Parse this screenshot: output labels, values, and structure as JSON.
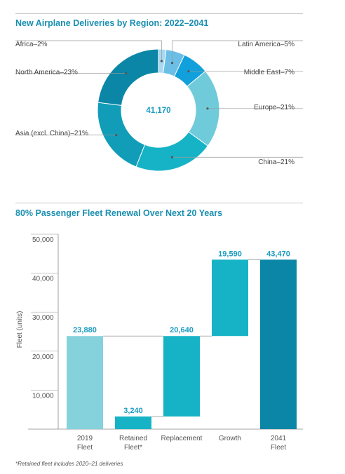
{
  "chart_data": [
    {
      "type": "pie",
      "title": "New Airplane Deliveries by Region: 2022–2041",
      "center_value": "41,170",
      "slices": [
        {
          "label": "Africa–2%",
          "value": 2,
          "color": "#a9d8f2"
        },
        {
          "label": "Latin America–5%",
          "value": 5,
          "color": "#6bbfe6"
        },
        {
          "label": "Middle East–7%",
          "value": 7,
          "color": "#12a0dc"
        },
        {
          "label": "Europe–21%",
          "value": 21,
          "color": "#6fcbd9"
        },
        {
          "label": "China–21%",
          "value": 21,
          "color": "#16b3c6"
        },
        {
          "label": "Asia (excl. China)–21%",
          "value": 21,
          "color": "#119db8"
        },
        {
          "label": "North America–23%",
          "value": 23,
          "color": "#0b86a6"
        }
      ]
    },
    {
      "type": "bar",
      "subtype": "waterfall",
      "title": "80% Passenger Fleet Renewal Over Next 20 Years",
      "ylabel": "Fleet (units)",
      "ylim": [
        0,
        50000
      ],
      "yticks": [
        "10,000",
        "20,000",
        "30,000",
        "40,000",
        "50,000"
      ],
      "ytick_values": [
        10000,
        20000,
        30000,
        40000,
        50000
      ],
      "categories": [
        {
          "line1": "2019",
          "line2": "Fleet"
        },
        {
          "line1": "Retained",
          "line2": "Fleet*"
        },
        {
          "line1": "Replacement",
          "line2": ""
        },
        {
          "line1": "Growth",
          "line2": ""
        },
        {
          "line1": "2041",
          "line2": "Fleet"
        }
      ],
      "bars": [
        {
          "bottom": 0,
          "top": 23880,
          "label": "23,880",
          "color": "#85d2dd"
        },
        {
          "bottom": 0,
          "top": 3240,
          "label": "3,240",
          "color": "#16b3c6"
        },
        {
          "bottom": 3240,
          "top": 23880,
          "label": "20,640",
          "color": "#16b3c6"
        },
        {
          "bottom": 23880,
          "top": 43470,
          "label": "19,590",
          "color": "#16b3c6"
        },
        {
          "bottom": 0,
          "top": 43470,
          "label": "43,470",
          "color": "#0b86a6"
        }
      ]
    }
  ],
  "footnote": "*Retained fleet includes 2020–21 deliveries"
}
